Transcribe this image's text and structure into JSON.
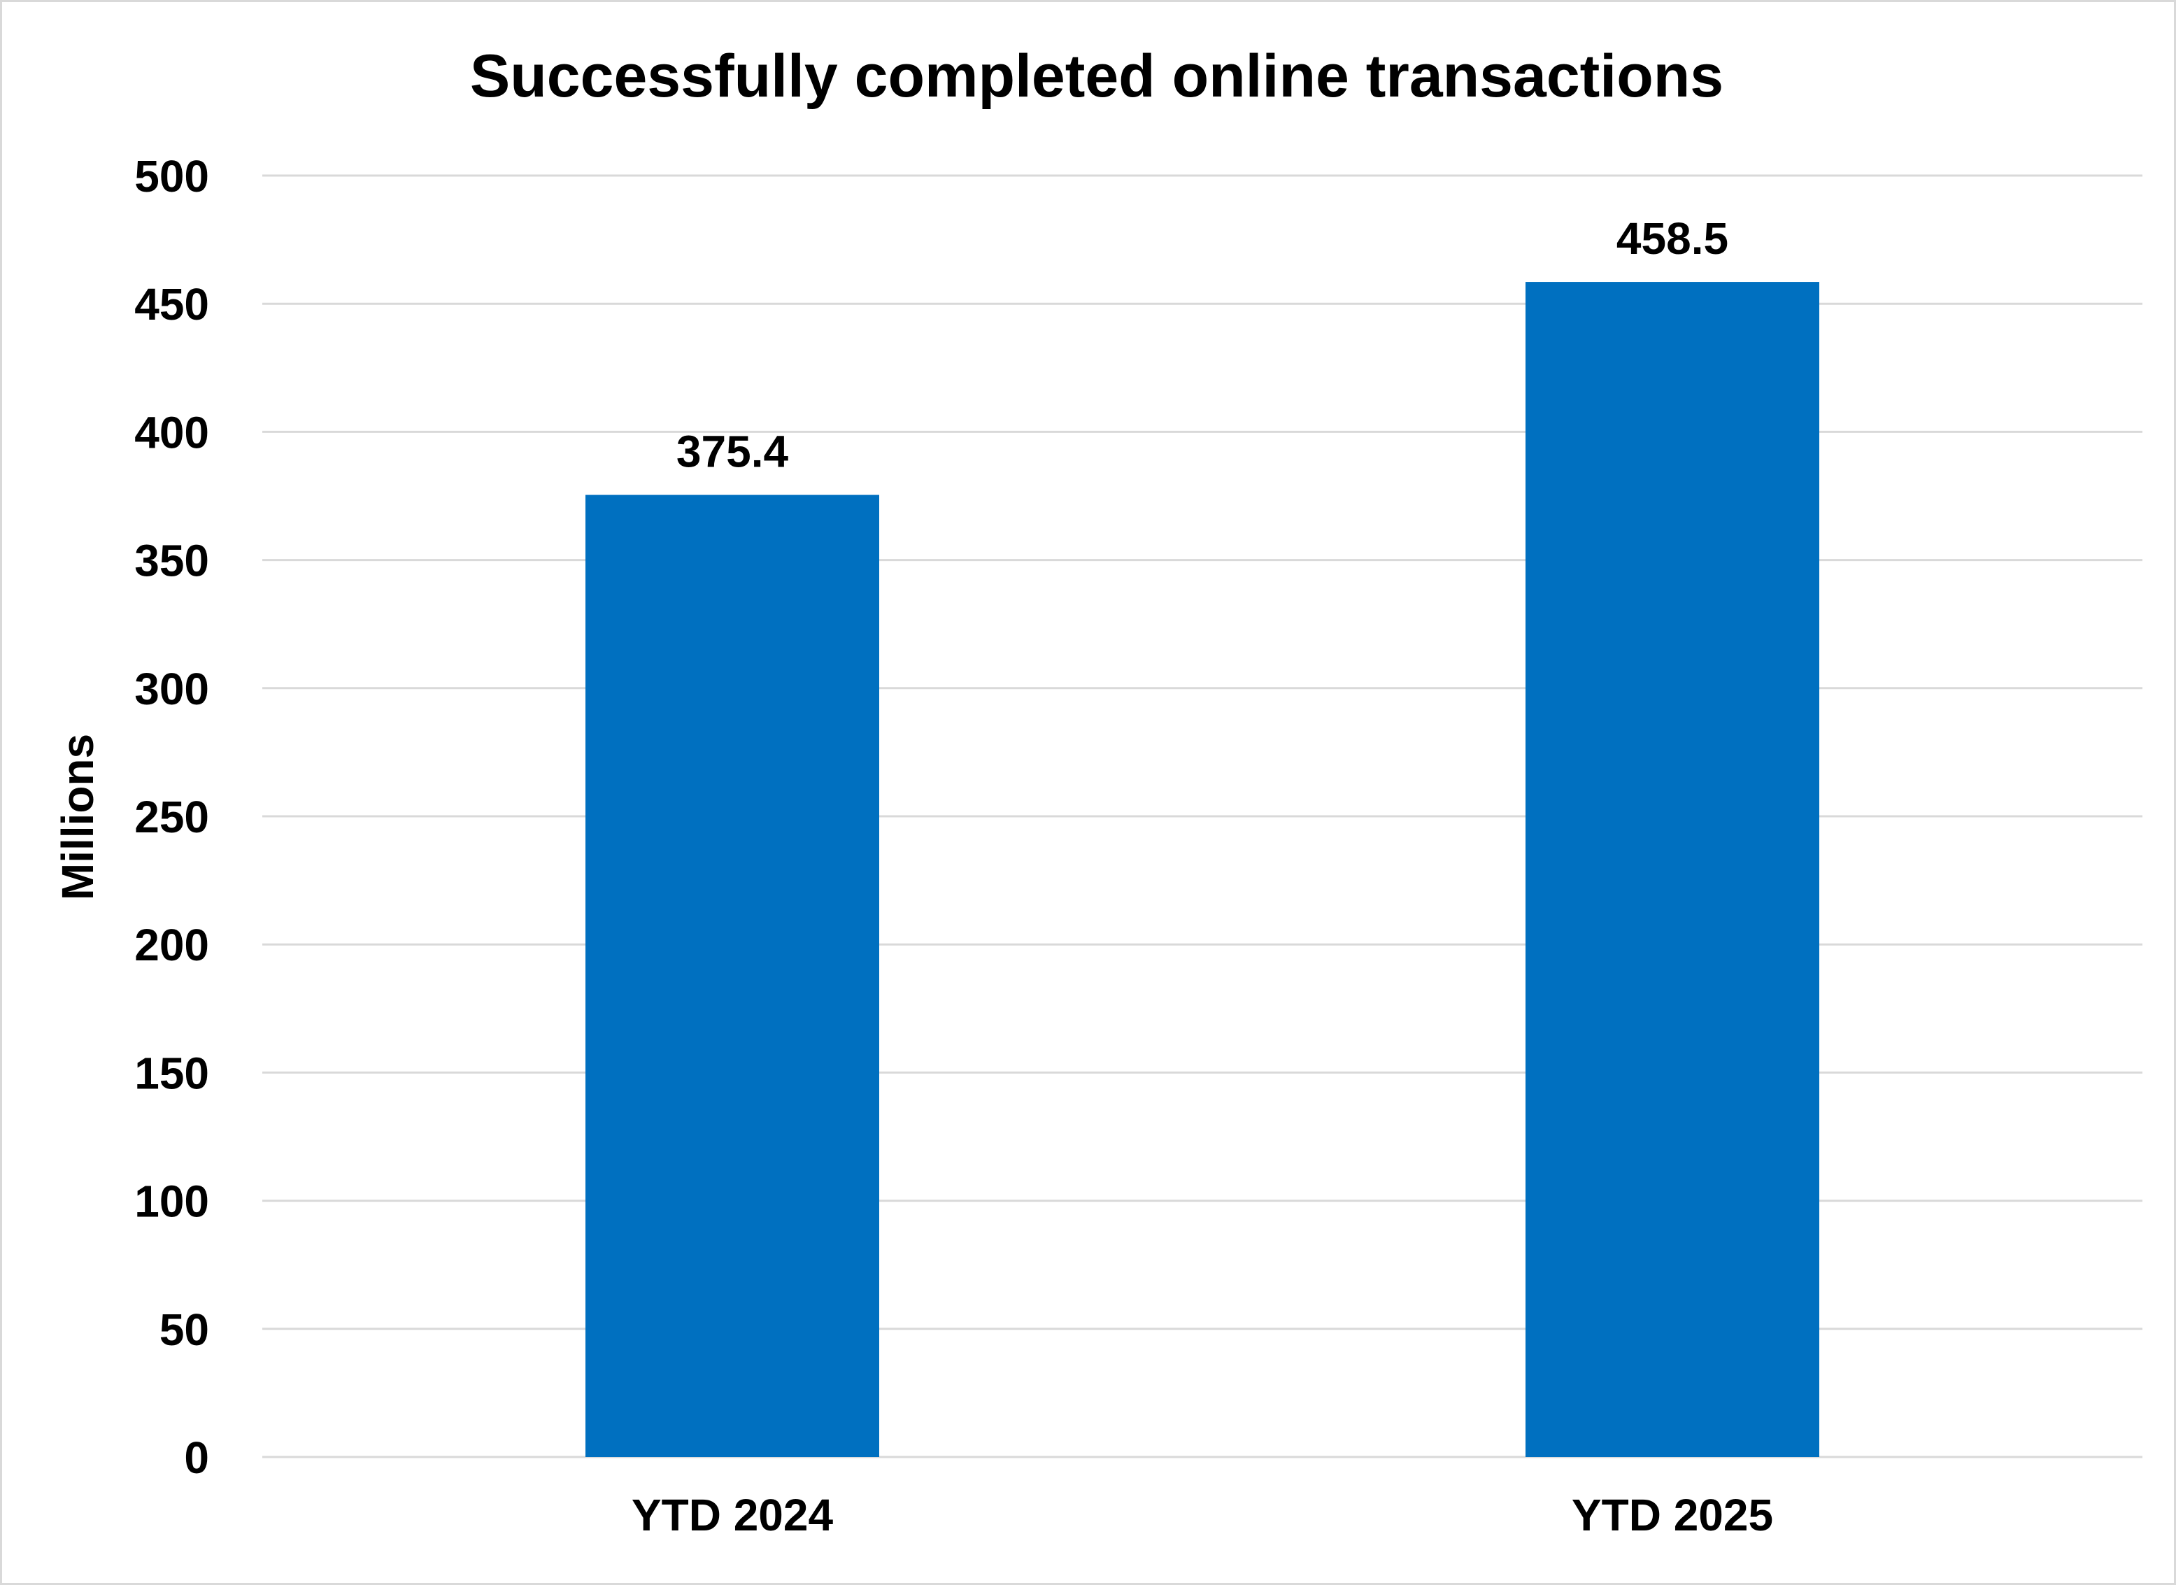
{
  "chart_data": {
    "type": "bar",
    "title": "Successfully completed online transactions",
    "xlabel": "",
    "ylabel": "Millions",
    "categories": [
      "YTD 2024",
      "YTD 2025"
    ],
    "values": [
      375.4,
      458.5
    ],
    "data_labels": [
      "375.4",
      "458.5"
    ],
    "ylim": [
      0,
      500
    ],
    "yticks": [
      0,
      50,
      100,
      150,
      200,
      250,
      300,
      350,
      400,
      450,
      500
    ],
    "grid": true,
    "legend": "none",
    "bar_color": "#0070C0"
  }
}
